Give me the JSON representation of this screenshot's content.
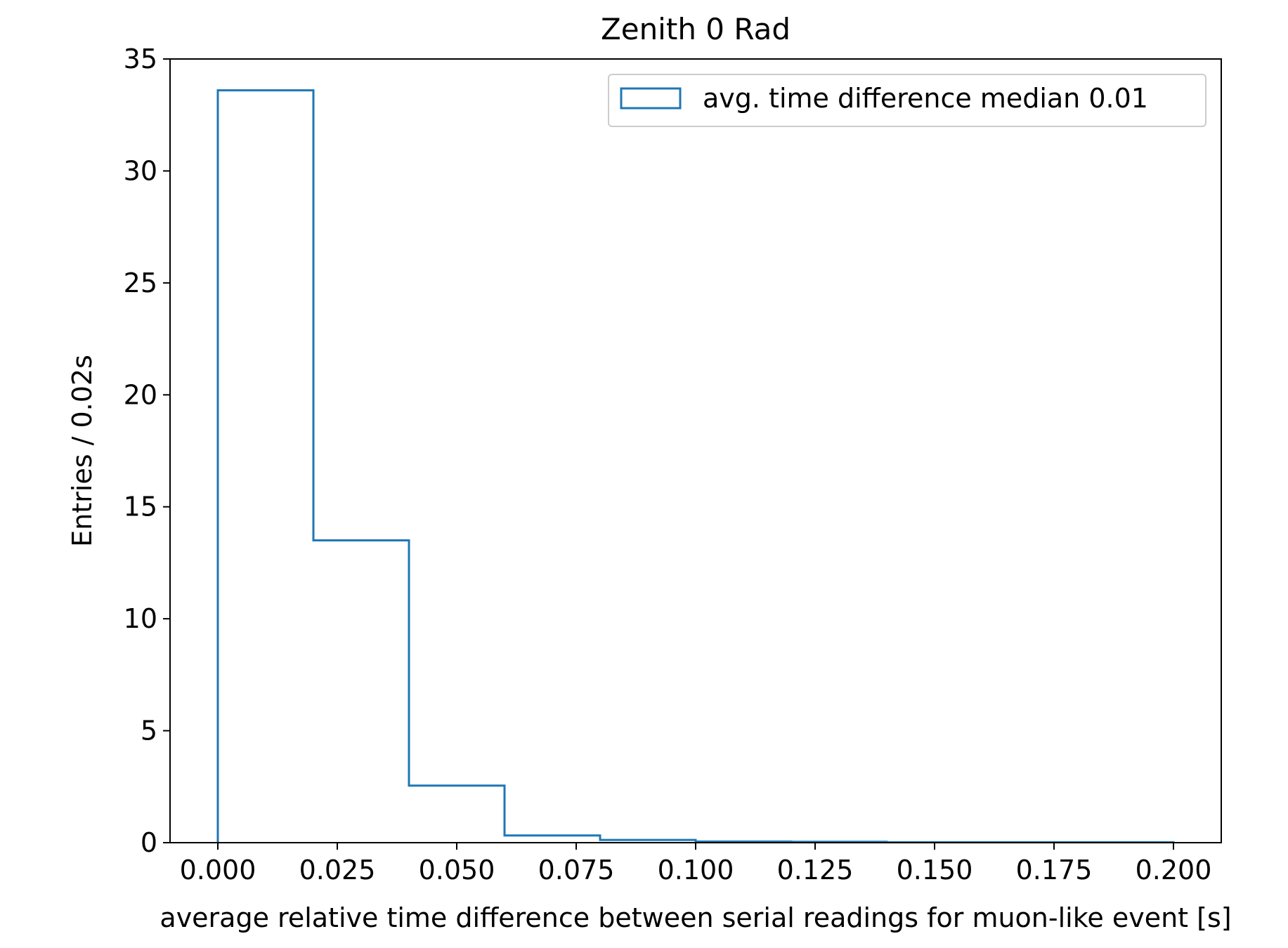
{
  "chart_data": {
    "type": "histogram",
    "title": "Zenith 0 Rad",
    "xlabel": "average relative time difference between serial readings for muon-like event [s]",
    "ylabel": "Entries / 0.02s",
    "xlim": [
      -0.01,
      0.21
    ],
    "ylim": [
      0,
      35.0
    ],
    "xticks": [
      0.0,
      0.025,
      0.05,
      0.075,
      0.1,
      0.125,
      0.15,
      0.175,
      0.2
    ],
    "xtick_labels": [
      "0.000",
      "0.025",
      "0.050",
      "0.075",
      "0.100",
      "0.125",
      "0.150",
      "0.175",
      "0.200"
    ],
    "yticks": [
      0,
      5,
      10,
      15,
      20,
      25,
      30,
      35
    ],
    "ytick_labels": [
      "0",
      "5",
      "10",
      "15",
      "20",
      "25",
      "30",
      "35"
    ],
    "bin_edges": [
      0.0,
      0.02,
      0.04,
      0.06,
      0.08,
      0.1,
      0.12,
      0.14,
      0.16,
      0.18,
      0.2
    ],
    "series": [
      {
        "name": "avg. time difference median 0.01",
        "color": "#1f77b4",
        "values": [
          33.6,
          13.5,
          2.55,
          0.32,
          0.12,
          0.05,
          0.04,
          0.02,
          0.02,
          0.02
        ]
      }
    ],
    "grid": false,
    "legend_position": "upper right"
  }
}
